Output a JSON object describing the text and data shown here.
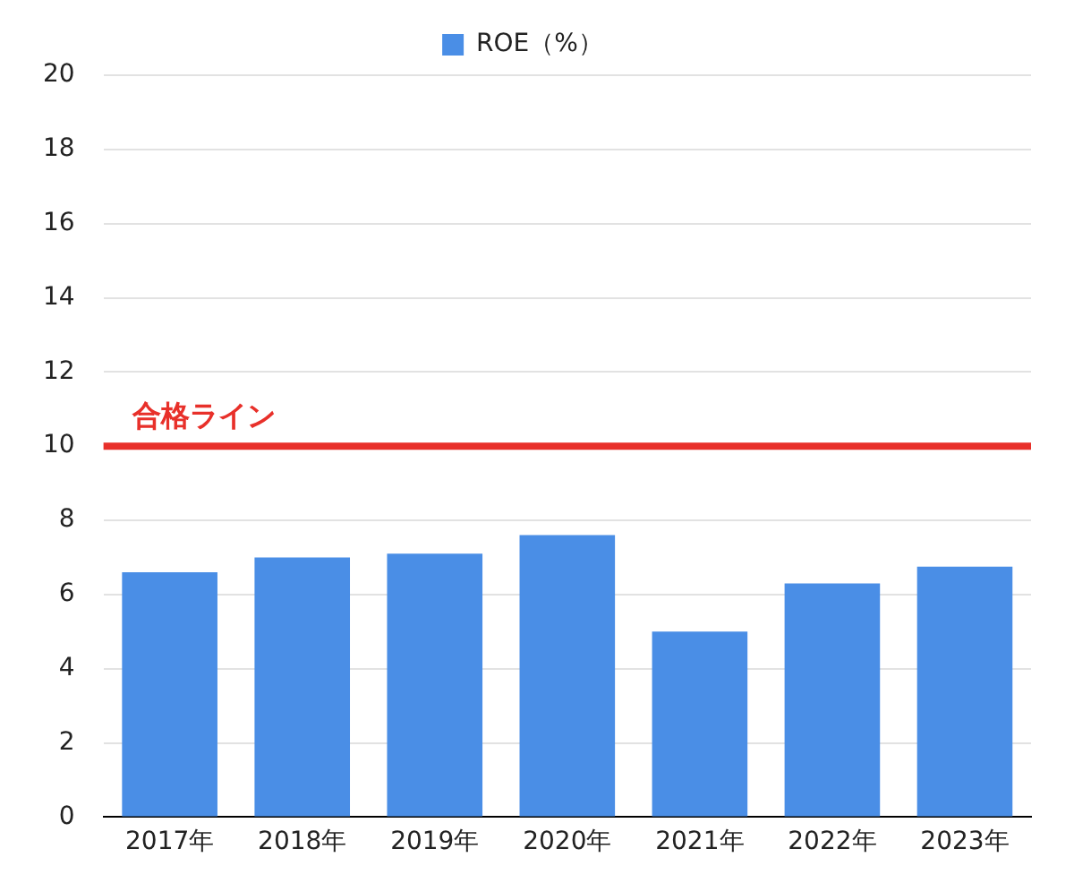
{
  "chart_data": {
    "type": "bar",
    "categories": [
      "2017年",
      "2018年",
      "2019年",
      "2020年",
      "2021年",
      "2022年",
      "2023年"
    ],
    "series": [
      {
        "name": "ROE（%）",
        "color": "#4a8ee6",
        "values": [
          6.6,
          7.0,
          7.1,
          7.6,
          5.0,
          6.3,
          6.75
        ]
      }
    ],
    "ylim": [
      0,
      20
    ],
    "yticks": [
      0,
      2,
      4,
      6,
      8,
      10,
      12,
      14,
      16,
      18,
      20
    ],
    "ref_lines": [
      {
        "axis": "y",
        "value": 10,
        "label": "合格ライン",
        "color": "#e8302a"
      }
    ],
    "grid": "y",
    "legend": "top"
  }
}
